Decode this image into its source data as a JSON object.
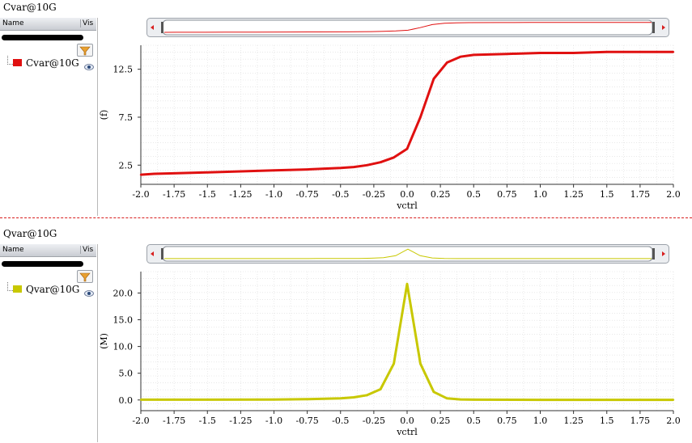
{
  "panels": [
    {
      "title": "Cvar@10G",
      "legend": {
        "header_name": "Name",
        "header_vis": "Vis",
        "items": [
          {
            "label": "Cvar@10G",
            "color": "#e01010",
            "icon": "eye-icon"
          }
        ]
      },
      "filter_icon": "funnel-icon"
    },
    {
      "title": "Qvar@10G",
      "legend": {
        "header_name": "Name",
        "header_vis": "Vis",
        "items": [
          {
            "label": "Qvar@10G",
            "color": "#c8c800",
            "icon": "eye-icon"
          }
        ]
      },
      "filter_icon": "funnel-icon"
    }
  ],
  "chart_data": [
    {
      "type": "line",
      "title": "Cvar@10G",
      "xlabel": "vctrl",
      "ylabel": "(f)",
      "xlim": [
        -2.0,
        2.0
      ],
      "ylim": [
        0.5,
        15.0
      ],
      "xticks": [
        "-2.0",
        "-1.75",
        "-1.5",
        "-1.25",
        "-1.0",
        "-0.75",
        "-0.5",
        "-0.25",
        "0.0",
        "0.25",
        "0.5",
        "0.75",
        "1.0",
        "1.25",
        "1.5",
        "1.75",
        "2.0"
      ],
      "yticks": [
        "2.5",
        "7.5",
        "12.5"
      ],
      "grid": true,
      "color": "#e01010",
      "series": [
        {
          "name": "Cvar@10G",
          "x": [
            -2.0,
            -1.9,
            -1.75,
            -1.5,
            -1.25,
            -1.0,
            -0.75,
            -0.5,
            -0.4,
            -0.3,
            -0.2,
            -0.1,
            0.0,
            0.1,
            0.2,
            0.3,
            0.4,
            0.5,
            0.75,
            1.0,
            1.25,
            1.5,
            1.75,
            2.0
          ],
          "values": [
            1.5,
            1.6,
            1.65,
            1.75,
            1.85,
            1.95,
            2.05,
            2.2,
            2.3,
            2.5,
            2.8,
            3.3,
            4.2,
            7.5,
            11.5,
            13.2,
            13.8,
            14.0,
            14.1,
            14.2,
            14.2,
            14.3,
            14.3,
            14.3
          ]
        }
      ]
    },
    {
      "type": "line",
      "title": "Qvar@10G",
      "xlabel": "vctrl",
      "ylabel": "(M)",
      "xlim": [
        -2.0,
        2.0
      ],
      "ylim": [
        -2.0,
        24.0
      ],
      "xticks": [
        "-2.0",
        "-1.75",
        "-1.5",
        "-1.25",
        "-1.0",
        "-0.75",
        "-0.5",
        "-0.25",
        "0.0",
        "0.25",
        "0.5",
        "0.75",
        "1.0",
        "1.25",
        "1.5",
        "1.75",
        "2.0"
      ],
      "yticks": [
        "0.0",
        "5.0",
        "10.0",
        "15.0",
        "20.0"
      ],
      "grid": true,
      "color": "#c8c800",
      "series": [
        {
          "name": "Qvar@10G",
          "x": [
            -2.0,
            -1.5,
            -1.0,
            -0.75,
            -0.5,
            -0.4,
            -0.3,
            -0.2,
            -0.1,
            0.0,
            0.1,
            0.2,
            0.3,
            0.4,
            0.5,
            1.0,
            1.5,
            2.0
          ],
          "values": [
            0.05,
            0.05,
            0.08,
            0.15,
            0.3,
            0.5,
            0.9,
            2.0,
            6.8,
            21.7,
            6.8,
            1.5,
            0.3,
            0.1,
            0.05,
            0.03,
            0.02,
            0.02
          ]
        }
      ]
    }
  ]
}
